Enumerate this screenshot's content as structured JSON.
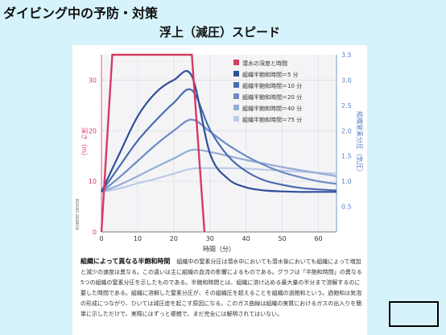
{
  "slide": {
    "title": "ダイビング中の予防・対策",
    "subtitle": "浮上（減圧）スピード"
  },
  "chart_data": {
    "type": "line",
    "xlabel": "時間（分）",
    "ylabel_left": "深さ（m）",
    "ylabel_right": "組織窒素分圧（気圧）",
    "xlim": [
      0,
      65
    ],
    "ylim_left": [
      0,
      35
    ],
    "ylim_right": [
      0,
      3.5
    ],
    "x_ticks": [
      0,
      10,
      20,
      30,
      40,
      50,
      60
    ],
    "y_ticks_left": [
      0,
      10,
      20,
      30
    ],
    "y_ticks_right": [
      "3.5",
      "3.0",
      "2.5",
      "2.0",
      "1.5",
      "1.0",
      "0.5"
    ],
    "y_ticks_right_values": [
      3.5,
      3.0,
      2.5,
      2.0,
      1.5,
      1.0,
      0.5
    ],
    "grid": true,
    "legend_position": "top-right",
    "side_label": "ROBERT DEVOE",
    "depth_series": {
      "name": "潜水の深度と時間",
      "color": "#d63a62",
      "x": [
        0,
        3,
        25,
        28.5
      ],
      "depth": [
        0,
        35,
        35,
        0
      ]
    },
    "series": [
      {
        "name": "組織半飽和時間＝5 分",
        "color": "#2f4f98",
        "x": [
          0,
          5,
          10,
          15,
          20,
          25,
          30,
          35,
          40,
          45,
          50,
          55,
          60,
          65
        ],
        "values": [
          0.79,
          1.55,
          2.28,
          2.75,
          3.0,
          3.08,
          1.55,
          1.05,
          0.88,
          0.82,
          0.8,
          0.79,
          0.79,
          0.79
        ]
      },
      {
        "name": "組織半飽和時間＝10 分",
        "color": "#4a6bb0",
        "x": [
          0,
          5,
          10,
          15,
          20,
          25,
          30,
          35,
          40,
          45,
          50,
          55,
          60,
          65
        ],
        "values": [
          0.79,
          1.3,
          1.8,
          2.2,
          2.55,
          2.8,
          2.02,
          1.5,
          1.2,
          1.02,
          0.93,
          0.87,
          0.84,
          0.82
        ]
      },
      {
        "name": "組織半飽和時間＝20 分",
        "color": "#6d8cc4",
        "x": [
          0,
          5,
          10,
          15,
          20,
          25,
          30,
          35,
          40,
          45,
          50,
          55,
          60,
          65
        ],
        "values": [
          0.79,
          1.08,
          1.4,
          1.72,
          2.0,
          2.22,
          1.98,
          1.72,
          1.5,
          1.32,
          1.18,
          1.08,
          1.0,
          0.95
        ]
      },
      {
        "name": "組織半飽和時間＝40 分",
        "color": "#95acd6",
        "x": [
          0,
          5,
          10,
          15,
          20,
          25,
          30,
          35,
          40,
          45,
          50,
          55,
          60,
          65
        ],
        "values": [
          0.79,
          0.93,
          1.1,
          1.28,
          1.45,
          1.62,
          1.58,
          1.5,
          1.42,
          1.35,
          1.28,
          1.22,
          1.16,
          1.1
        ]
      },
      {
        "name": "組織半飽和時間＝75 分",
        "color": "#bccbe6",
        "x": [
          0,
          5,
          10,
          15,
          20,
          25,
          30,
          35,
          40,
          45,
          50,
          55,
          60,
          65
        ],
        "values": [
          0.79,
          0.86,
          0.96,
          1.05,
          1.15,
          1.25,
          1.26,
          1.26,
          1.25,
          1.23,
          1.21,
          1.19,
          1.17,
          1.15
        ]
      }
    ]
  },
  "caption": {
    "title": "組織によって異なる半飽和時間",
    "body": "組織中の窒素分圧は潜水中においても潜水後においても組織によって増加と減少の速度は異なる。この違いは主に組織の血流の影響によるものである。グラフは「半飽和時間」の異なる5つの組織の窒素分圧を示したものである。半飽和時間とは、組織に溶け込める最大量の半分まで溶解するのに要した時間である。組織に溶解した窒素分圧が、その組織圧を超えることを組織の過飽和という。過飽和は気泡の形成につながり、ひいては減圧症を起こす原因になる。このガス曲線は組織の実質におけるガスの出入りを簡単に示しただけで、実際にはずっと複雑で、まだ完全には解明されてはいない。"
  },
  "colors": {
    "background": "#d6f3fb",
    "panel": "#ffffff",
    "plot_bg": "#f4f4f6",
    "depth": "#d63a62",
    "left_axis": "#d63a62",
    "right_axis": "#5b7fc4"
  }
}
